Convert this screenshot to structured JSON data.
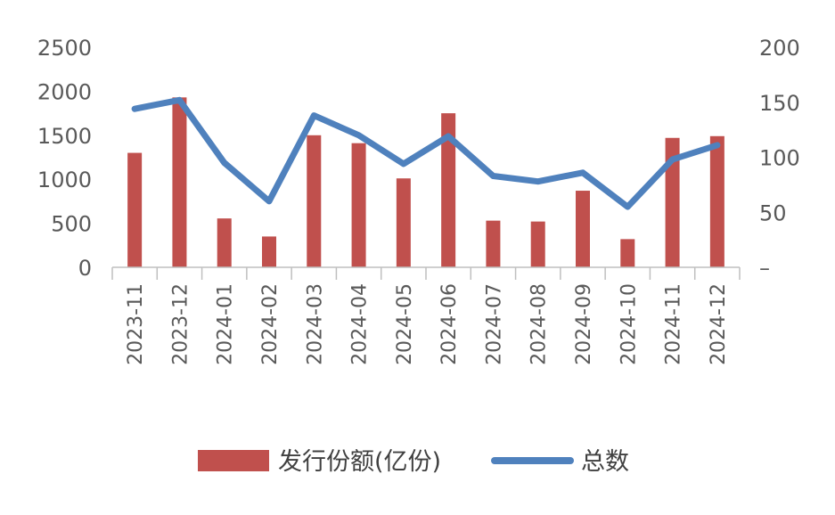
{
  "chart_data": {
    "type": "bar",
    "categories": [
      "2023-11",
      "2023-12",
      "2024-01",
      "2024-02",
      "2024-03",
      "2024-04",
      "2024-05",
      "2024-06",
      "2024-07",
      "2024-08",
      "2024-09",
      "2024-10",
      "2024-11",
      "2024-12"
    ],
    "series": [
      {
        "name": "发行份额(亿份)",
        "type": "bar",
        "axis": "left",
        "color": "#C0504D",
        "values": [
          1300,
          1930,
          555,
          350,
          1500,
          1410,
          1010,
          1750,
          530,
          520,
          870,
          320,
          1470,
          1490
        ]
      },
      {
        "name": "总数",
        "type": "line",
        "axis": "right",
        "color": "#4F81BD",
        "values": [
          144,
          152,
          95,
          60,
          138,
          120,
          94,
          119,
          83,
          78,
          86,
          55,
          98,
          111
        ]
      }
    ],
    "y_left": {
      "ticks": [
        "0",
        "500",
        "1000",
        "1500",
        "2000",
        "2500"
      ],
      "ylim": [
        0,
        2500
      ]
    },
    "y_right": {
      "ticks": [
        "–",
        "50",
        "100",
        "150",
        "200"
      ],
      "ylim": [
        0,
        200
      ]
    },
    "grid": false,
    "legend_position": "bottom"
  }
}
